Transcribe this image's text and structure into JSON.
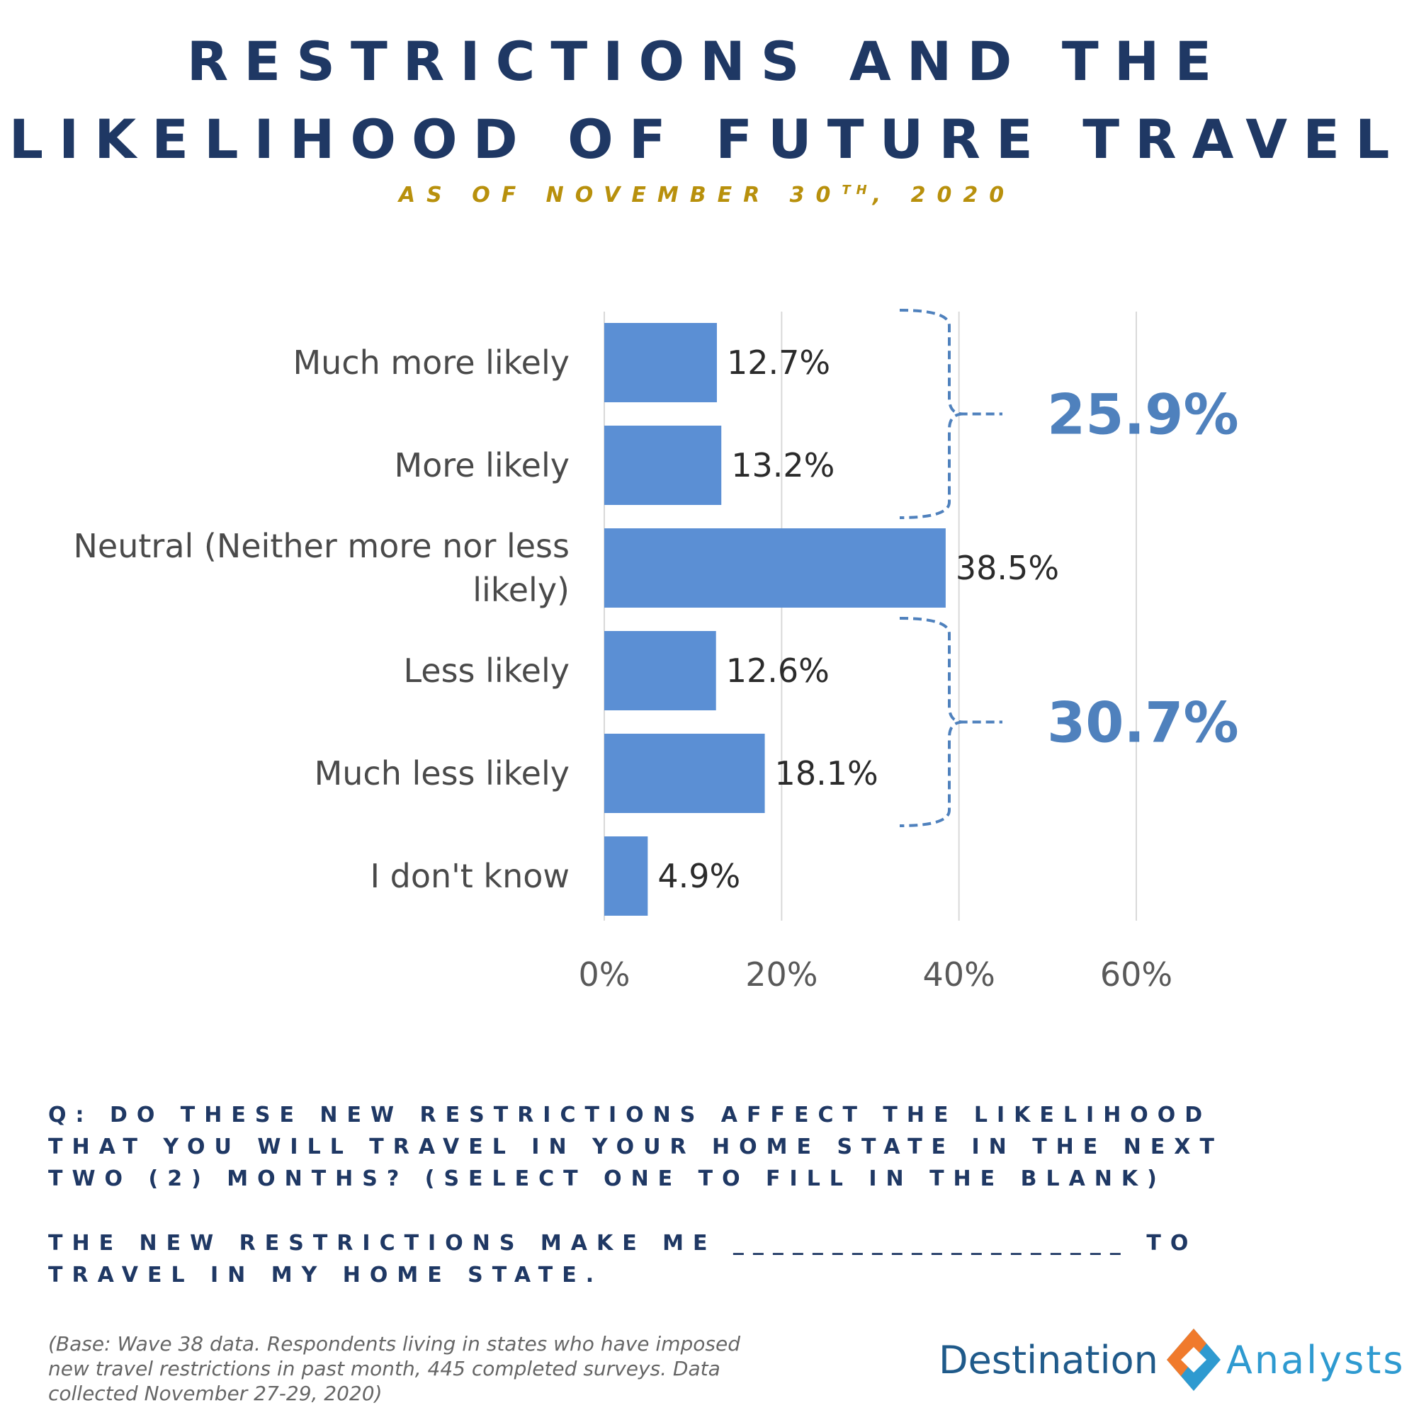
{
  "header": {
    "title_line1": "RESTRICTIONS AND THE",
    "title_line2": "LIKELIHOOD OF FUTURE TRAVEL",
    "subtitle_main": "AS OF NOVEMBER 30",
    "subtitle_sup": "TH",
    "subtitle_end": ", 2020"
  },
  "chart_data": {
    "type": "bar",
    "orientation": "horizontal",
    "categories": [
      "Much more likely",
      "More likely",
      "Neutral (Neither more nor less likely)",
      "Less likely",
      "Much less likely",
      "I don't know"
    ],
    "category_lines": [
      [
        "Much more likely"
      ],
      [
        "More likely"
      ],
      [
        "Neutral (Neither more nor less",
        "likely)"
      ],
      [
        "Less likely"
      ],
      [
        "Much less likely"
      ],
      [
        "I don't know"
      ]
    ],
    "values": [
      12.7,
      13.2,
      38.5,
      12.6,
      18.1,
      4.9
    ],
    "value_labels": [
      "12.7%",
      "13.2%",
      "38.5%",
      "12.6%",
      "18.1%",
      "4.9%"
    ],
    "xlim": [
      0,
      60
    ],
    "xticks": [
      0,
      20,
      40,
      60
    ],
    "xtick_labels": [
      "0%",
      "20%",
      "40%",
      "60%"
    ],
    "grid": "vertical",
    "bar_color": "#5b8fd4",
    "group_totals": [
      {
        "label": "25.9%",
        "categories": [
          "Much more likely",
          "More likely"
        ]
      },
      {
        "label": "30.7%",
        "categories": [
          "Less likely",
          "Much less likely"
        ]
      }
    ]
  },
  "question": {
    "text": "Q: DO THESE NEW RESTRICTIONS AFFECT THE LIKELIHOOD THAT YOU WILL TRAVEL IN YOUR HOME STATE IN THE NEXT TWO (2) MONTHS? (SELECT ONE TO FILL IN THE BLANK)",
    "statement": "THE NEW RESTRICTIONS MAKE ME ____________________ TO TRAVEL IN MY HOME STATE."
  },
  "footnote": "(Base: Wave 38 data. Respondents living in states who have imposed new travel restrictions in past month, 445 completed surveys. Data collected November 27-29, 2020)",
  "logo": {
    "word1": "Destination",
    "word2": "Analysts",
    "colors": {
      "dark": "#1f5a8a",
      "light": "#2e9ad0",
      "orange": "#f07a2c"
    }
  }
}
